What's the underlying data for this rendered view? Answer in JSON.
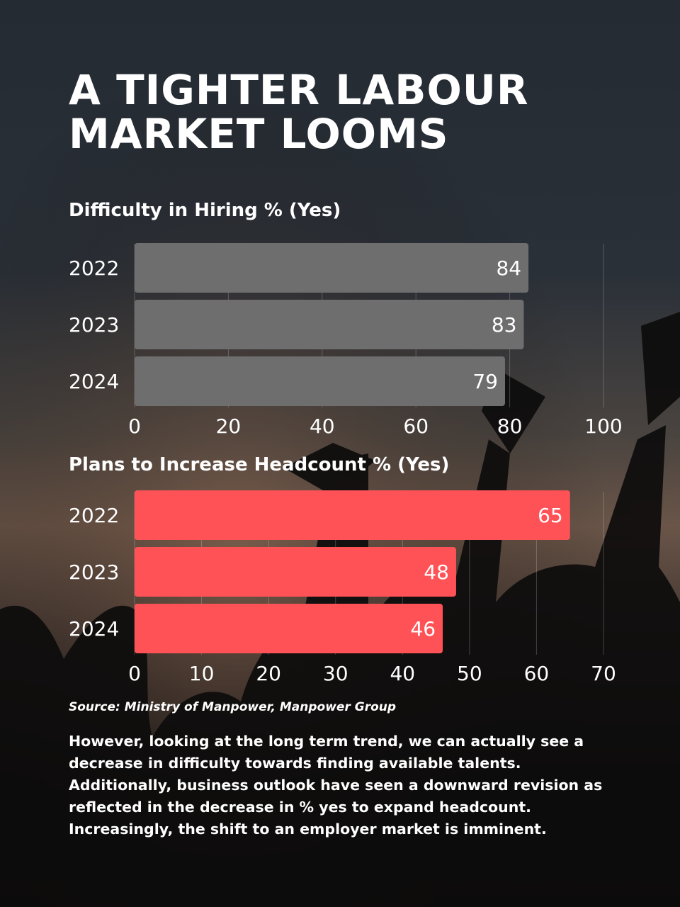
{
  "title": "A TIGHTER LABOUR MARKET LOOMS",
  "chart_data": [
    {
      "type": "bar",
      "orientation": "horizontal",
      "title": "Difficulty in Hiring % (Yes)",
      "categories": [
        "2022",
        "2023",
        "2024"
      ],
      "values": [
        84,
        83,
        79
      ],
      "xlim": [
        0,
        100
      ],
      "ticks": [
        0,
        20,
        40,
        60,
        80,
        100
      ],
      "color": "#6e6e6e",
      "grid": true
    },
    {
      "type": "bar",
      "orientation": "horizontal",
      "title": "Plans to Increase Headcount % (Yes)",
      "categories": [
        "2022",
        "2023",
        "2024"
      ],
      "values": [
        65,
        48,
        46
      ],
      "xlim": [
        0,
        70
      ],
      "ticks": [
        0,
        10,
        20,
        30,
        40,
        50,
        60,
        70
      ],
      "color": "#ff5257",
      "grid": true
    }
  ],
  "source": "Source: Ministry of Manpower, Manpower Group",
  "body": "However, looking at the long term trend, we can actually see a decrease in difficulty towards finding available talents. Additionally, business outlook have seen a downward revision as reflected in the decrease in % yes to expand headcount. Increasingly, the shift to an employer market is imminent."
}
